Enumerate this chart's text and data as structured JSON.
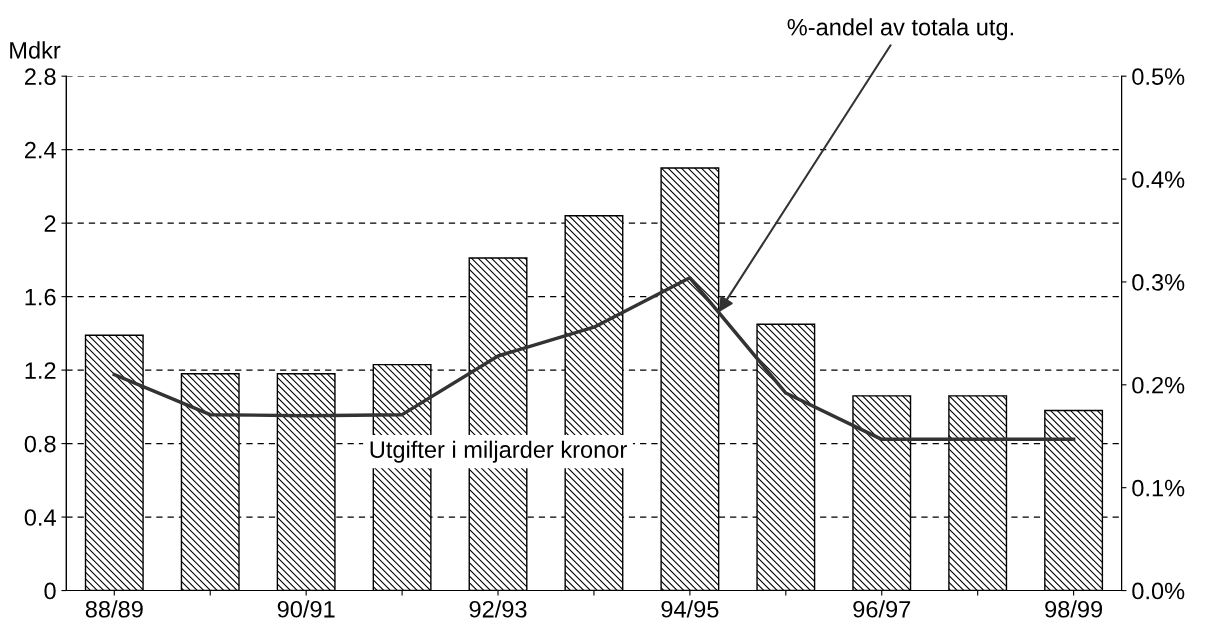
{
  "chart_data": {
    "type": "bar",
    "ylabel": "Mdkr",
    "categories": [
      "88/89",
      null,
      "90/91",
      null,
      "92/93",
      null,
      "94/95",
      null,
      "96/97",
      null,
      "98/99"
    ],
    "series": [
      {
        "name": "Utgifter i miljarder kronor",
        "color": "#000000",
        "values": [
          1.39,
          1.18,
          1.18,
          1.23,
          1.81,
          2.04,
          2.3,
          1.45,
          1.06,
          1.06,
          0.98
        ]
      },
      {
        "name": "%-andel av totala utg.",
        "type": "line",
        "axis": "y2",
        "color": "#333333",
        "values": [
          0.21,
          0.171,
          0.17,
          0.171,
          0.228,
          0.256,
          0.304,
          0.192,
          0.147,
          0.147,
          0.147
        ]
      }
    ],
    "ylim": [
      0,
      2.8
    ],
    "yticks": [
      0,
      0.4,
      0.8,
      1.2,
      1.6,
      2,
      2.4,
      2.8
    ],
    "y2lim": [
      0,
      0.5
    ],
    "y2ticks": [
      {
        "value": 0,
        "label": "0.0%"
      },
      {
        "value": 0.1,
        "label": "0.1%"
      },
      {
        "value": 0.2,
        "label": "0.2%"
      },
      {
        "value": 0.3,
        "label": "0.3%"
      },
      {
        "value": 0.4,
        "label": "0.4%"
      },
      {
        "value": 0.5,
        "label": "0.5%"
      }
    ],
    "grid": "y",
    "legend": false,
    "marker": "none",
    "line_style": "solid"
  }
}
